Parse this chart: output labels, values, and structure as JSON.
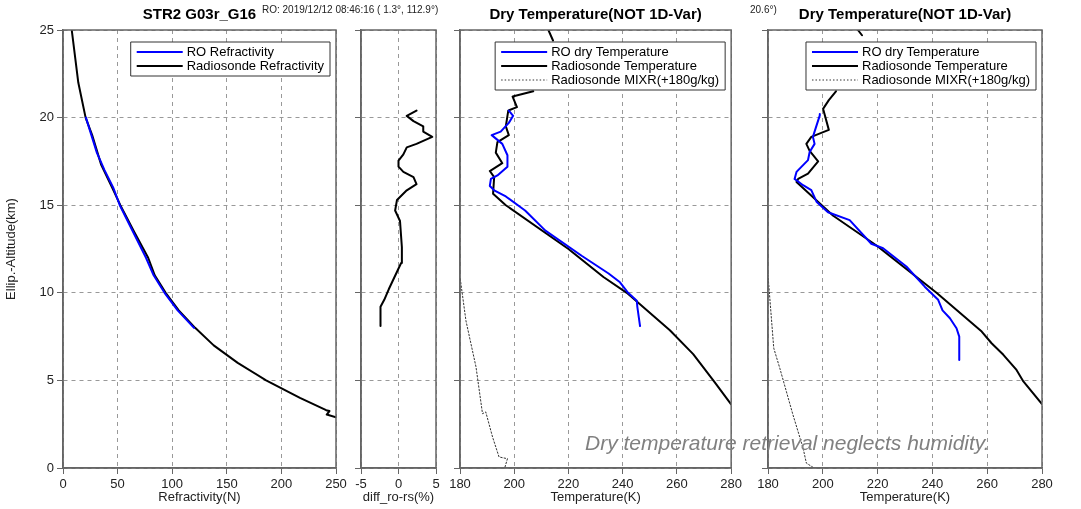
{
  "chart_data": [
    {
      "type": "line",
      "title": "STR2 G03r_G16",
      "xlabel": "Refractivity(N)",
      "ylabel": "Ellip.-Altitude(km)",
      "xlim": [
        0,
        250
      ],
      "xticks": [
        0,
        50,
        100,
        150,
        200,
        250
      ],
      "ylim": [
        0,
        25
      ],
      "yticks": [
        0,
        5,
        10,
        15,
        20,
        25
      ],
      "grid": true,
      "legend": "top right",
      "marker": "none",
      "series": [
        {
          "name": "RO Refractivity",
          "color": "#0000ff",
          "x": [
            120,
            105,
            93,
            83,
            76,
            64,
            52,
            46,
            38,
            31,
            26,
            21
          ],
          "values": [
            8,
            9,
            10,
            11,
            12,
            13.5,
            15,
            16,
            17,
            18,
            19,
            20
          ]
        },
        {
          "name": "Radiosonde Refractivity",
          "color": "#000000",
          "x": [
            250,
            241.5,
            244,
            241,
            217,
            186,
            160,
            138,
            121,
            106,
            94,
            84,
            78,
            65,
            52.5,
            45,
            35,
            26.7,
            20.7,
            14,
            8
          ],
          "values": [
            2.9,
            3.05,
            3.25,
            3.3,
            4,
            5,
            6,
            7,
            8,
            9,
            10,
            11,
            12,
            13.5,
            15,
            16,
            17.3,
            19,
            20,
            22,
            25
          ]
        }
      ]
    },
    {
      "type": "line",
      "xlabel": "diff_ro-rs(%)",
      "xlim": [
        -5,
        5
      ],
      "xticks": [
        -5,
        0,
        5
      ],
      "ylim": [
        0,
        25
      ],
      "yticks": [
        0,
        5,
        10,
        15,
        20,
        25
      ],
      "grid": true,
      "tick_labels": "x",
      "marker": "none",
      "annotations": [
        "RO: 2019/12/12 08:46:16 ( 1.3°,  112.9°)"
      ],
      "series": [
        {
          "color": "#000000",
          "x": [
            -2.4,
            -2.4,
            -1.9,
            -1.3,
            -0.2,
            0.35,
            0.45,
            0.2,
            -0.45,
            -0.2,
            1.1,
            2.4,
            2,
            0.65,
            0,
            0,
            0.65,
            1.1,
            2.4,
            4.5,
            3.3,
            3.3,
            2,
            1.1,
            2.4
          ],
          "values": [
            8.1,
            9.2,
            9.6,
            10.2,
            11.2,
            11.7,
            12.6,
            14.1,
            14.7,
            15.3,
            15.85,
            16.2,
            16.6,
            16.9,
            17.2,
            17.55,
            17.9,
            18.3,
            18.5,
            18.9,
            19.2,
            19.5,
            19.8,
            20.1,
            20.4
          ]
        }
      ]
    },
    {
      "type": "line",
      "title": "Dry Temperature(NOT 1D-Var)",
      "xlabel": "Temperature(K)",
      "xlim": [
        180,
        280
      ],
      "xticks": [
        180,
        200,
        220,
        240,
        260,
        280
      ],
      "ylim": [
        0,
        25
      ],
      "yticks": [
        0,
        5,
        10,
        15,
        20,
        25
      ],
      "grid": true,
      "tick_labels": "x",
      "legend": "top right",
      "marker": "none",
      "series": [
        {
          "name": "RO dry Temperature",
          "color": "#0000ff",
          "x": [
            246.4,
            245.4,
            245.2,
            242,
            239,
            234.8,
            225,
            211.5,
            204,
            196.9,
            192.6,
            191,
            191.4,
            193.8,
            197.5,
            197.5,
            195.6,
            191.7,
            195,
            198,
            199.6,
            198
          ],
          "values": [
            8.1,
            9.2,
            9.55,
            10,
            10.6,
            11.1,
            12.1,
            13.55,
            14.7,
            15.5,
            15.85,
            16.1,
            16.5,
            16.7,
            17.2,
            17.85,
            18.5,
            19.0,
            19.2,
            19.7,
            20.1,
            20.4
          ]
        },
        {
          "name": "Radiosonde Temperature",
          "color": "#000000",
          "x": [
            280,
            273.9,
            266,
            257.4,
            241.5,
            232.9,
            220,
            196.9,
            192.2,
            192.6,
            191,
            195.6,
            193.2,
            193.8,
            198,
            196.9,
            197.8,
            201,
            199.4,
            207,
            210,
            214.3,
            212.6
          ],
          "values": [
            3.63,
            4.9,
            6.5,
            7.86,
            10,
            10.9,
            12.5,
            15,
            15.66,
            16.6,
            16.95,
            17.4,
            18,
            18.6,
            19,
            19.5,
            20.4,
            20.6,
            21.2,
            21.5,
            null,
            24.4,
            25
          ]
        },
        {
          "name": "Radiosonde MIXR(+180g/kg)",
          "color": "#333333",
          "line_style": "dotted",
          "x": [
            196.6,
            197.5,
            194.4,
            192,
            189.5,
            188.3,
            185.9,
            182.2,
            180
          ],
          "values": [
            0.06,
            0.53,
            0.63,
            1.77,
            3.2,
            3.1,
            5.77,
            8.4,
            10.9
          ]
        }
      ]
    },
    {
      "type": "line",
      "title": "Dry Temperature(NOT 1D-Var)",
      "xlabel": "Temperature(K)",
      "xlim": [
        180,
        280
      ],
      "xticks": [
        180,
        200,
        220,
        240,
        260,
        280
      ],
      "ylim": [
        0,
        25
      ],
      "yticks": [
        0,
        5,
        10,
        15,
        20,
        25
      ],
      "grid": true,
      "tick_labels": "x",
      "legend": "top right",
      "marker": "none",
      "annotations": [
        "20.6°)",
        "Dry temperature retrieval neglects humidity."
      ],
      "series": [
        {
          "name": "RO dry Temperature",
          "color": "#0000ff",
          "x": [
            249.8,
            249.8,
            248.8,
            246.4,
            243.7,
            242.1,
            237.2,
            230.5,
            222,
            217.7,
            209.8,
            201.9,
            197.7,
            195.8,
            192.8,
            189.7,
            190.4,
            194.6,
            195.2,
            197,
            196.4,
            197,
            198.9,
            198.9
          ],
          "values": [
            6.17,
            7.5,
            7.98,
            8.55,
            9.0,
            9.6,
            10.35,
            11.5,
            12.54,
            12.8,
            14.15,
            14.6,
            15.2,
            15.86,
            16.14,
            16.5,
            16.9,
            17.57,
            18.04,
            18.5,
            18.9,
            19.2,
            20.13,
            20.2
          ]
        },
        {
          "name": "Radiosonde Temperature",
          "color": "#000000",
          "x": [
            280,
            273.2,
            270.7,
            265.9,
            261.6,
            258,
            241.5,
            219.6,
            203.8,
            190.4,
            191,
            194.6,
            198.3,
            195.2,
            194,
            195.8,
            202.2,
            200.1,
            202.2,
            204.8,
            208,
            214.3,
            212.8
          ],
          "values": [
            3.65,
            4.94,
            5.6,
            6.46,
            7.12,
            7.79,
            10,
            12.7,
            14.4,
            16.33,
            16.5,
            16.8,
            17.5,
            18.1,
            18.5,
            18.9,
            19.3,
            20.5,
            21.0,
            21.5,
            null,
            24.7,
            25
          ]
        },
        {
          "name": "Radiosonde MIXR(+180g/kg)",
          "color": "#333333",
          "line_style": "dotted",
          "x": [
            196.4,
            194,
            192.8,
            189.1,
            184.3,
            182.1,
            180
          ],
          "values": [
            0.04,
            0.28,
            1.14,
            3.04,
            5.7,
            6.84,
            11.0
          ]
        }
      ]
    }
  ]
}
